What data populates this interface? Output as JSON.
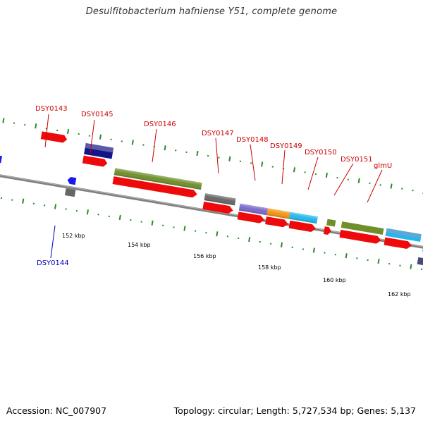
{
  "header": {
    "title": "Desulfitobacterium hafniense Y51, complete genome"
  },
  "footer": {
    "accession": "Accession: NC_007907",
    "topology": "Topology: circular; Length: 5,727,534 bp; Genes: 5,137"
  },
  "colors": {
    "forward_cds": "#ee0a0a",
    "label_forward": "#cc0000",
    "label_reverse": "#0000bb",
    "tick": "#2a8a2a",
    "backbone": "#888888"
  },
  "gene_labels": [
    {
      "name": "DSY0143",
      "strand": "forward"
    },
    {
      "name": "DSY0145",
      "strand": "forward"
    },
    {
      "name": "DSY0146",
      "strand": "forward"
    },
    {
      "name": "DSY0147",
      "strand": "forward"
    },
    {
      "name": "DSY0148",
      "strand": "forward"
    },
    {
      "name": "DSY0149",
      "strand": "forward"
    },
    {
      "name": "DSY0150",
      "strand": "forward"
    },
    {
      "name": "DSY0151",
      "strand": "forward"
    },
    {
      "name": "glmU",
      "strand": "forward"
    },
    {
      "name": "DSY0144",
      "strand": "reverse"
    }
  ],
  "position_labels": [
    "152 kbp",
    "154 kbp",
    "156 kbp",
    "158 kbp",
    "160 kbp",
    "162 kbp"
  ],
  "features": [
    {
      "id": "cds-a",
      "type": "cds",
      "color": "#ee0a0a"
    },
    {
      "id": "cds-b",
      "type": "cds",
      "color": "#1a1aee"
    },
    {
      "id": "cds-c",
      "type": "cds",
      "color": "#5a5aa8"
    },
    {
      "id": "cds-d",
      "type": "cds",
      "color": "#6f8f2a"
    },
    {
      "id": "cds-e",
      "type": "cds",
      "color": "#666666"
    },
    {
      "id": "cds-f",
      "type": "cds",
      "color": "#7a68cc"
    },
    {
      "id": "cds-g",
      "type": "cds",
      "color": "#f5940f"
    },
    {
      "id": "cds-h",
      "type": "cds",
      "color": "#21b8ee"
    }
  ]
}
